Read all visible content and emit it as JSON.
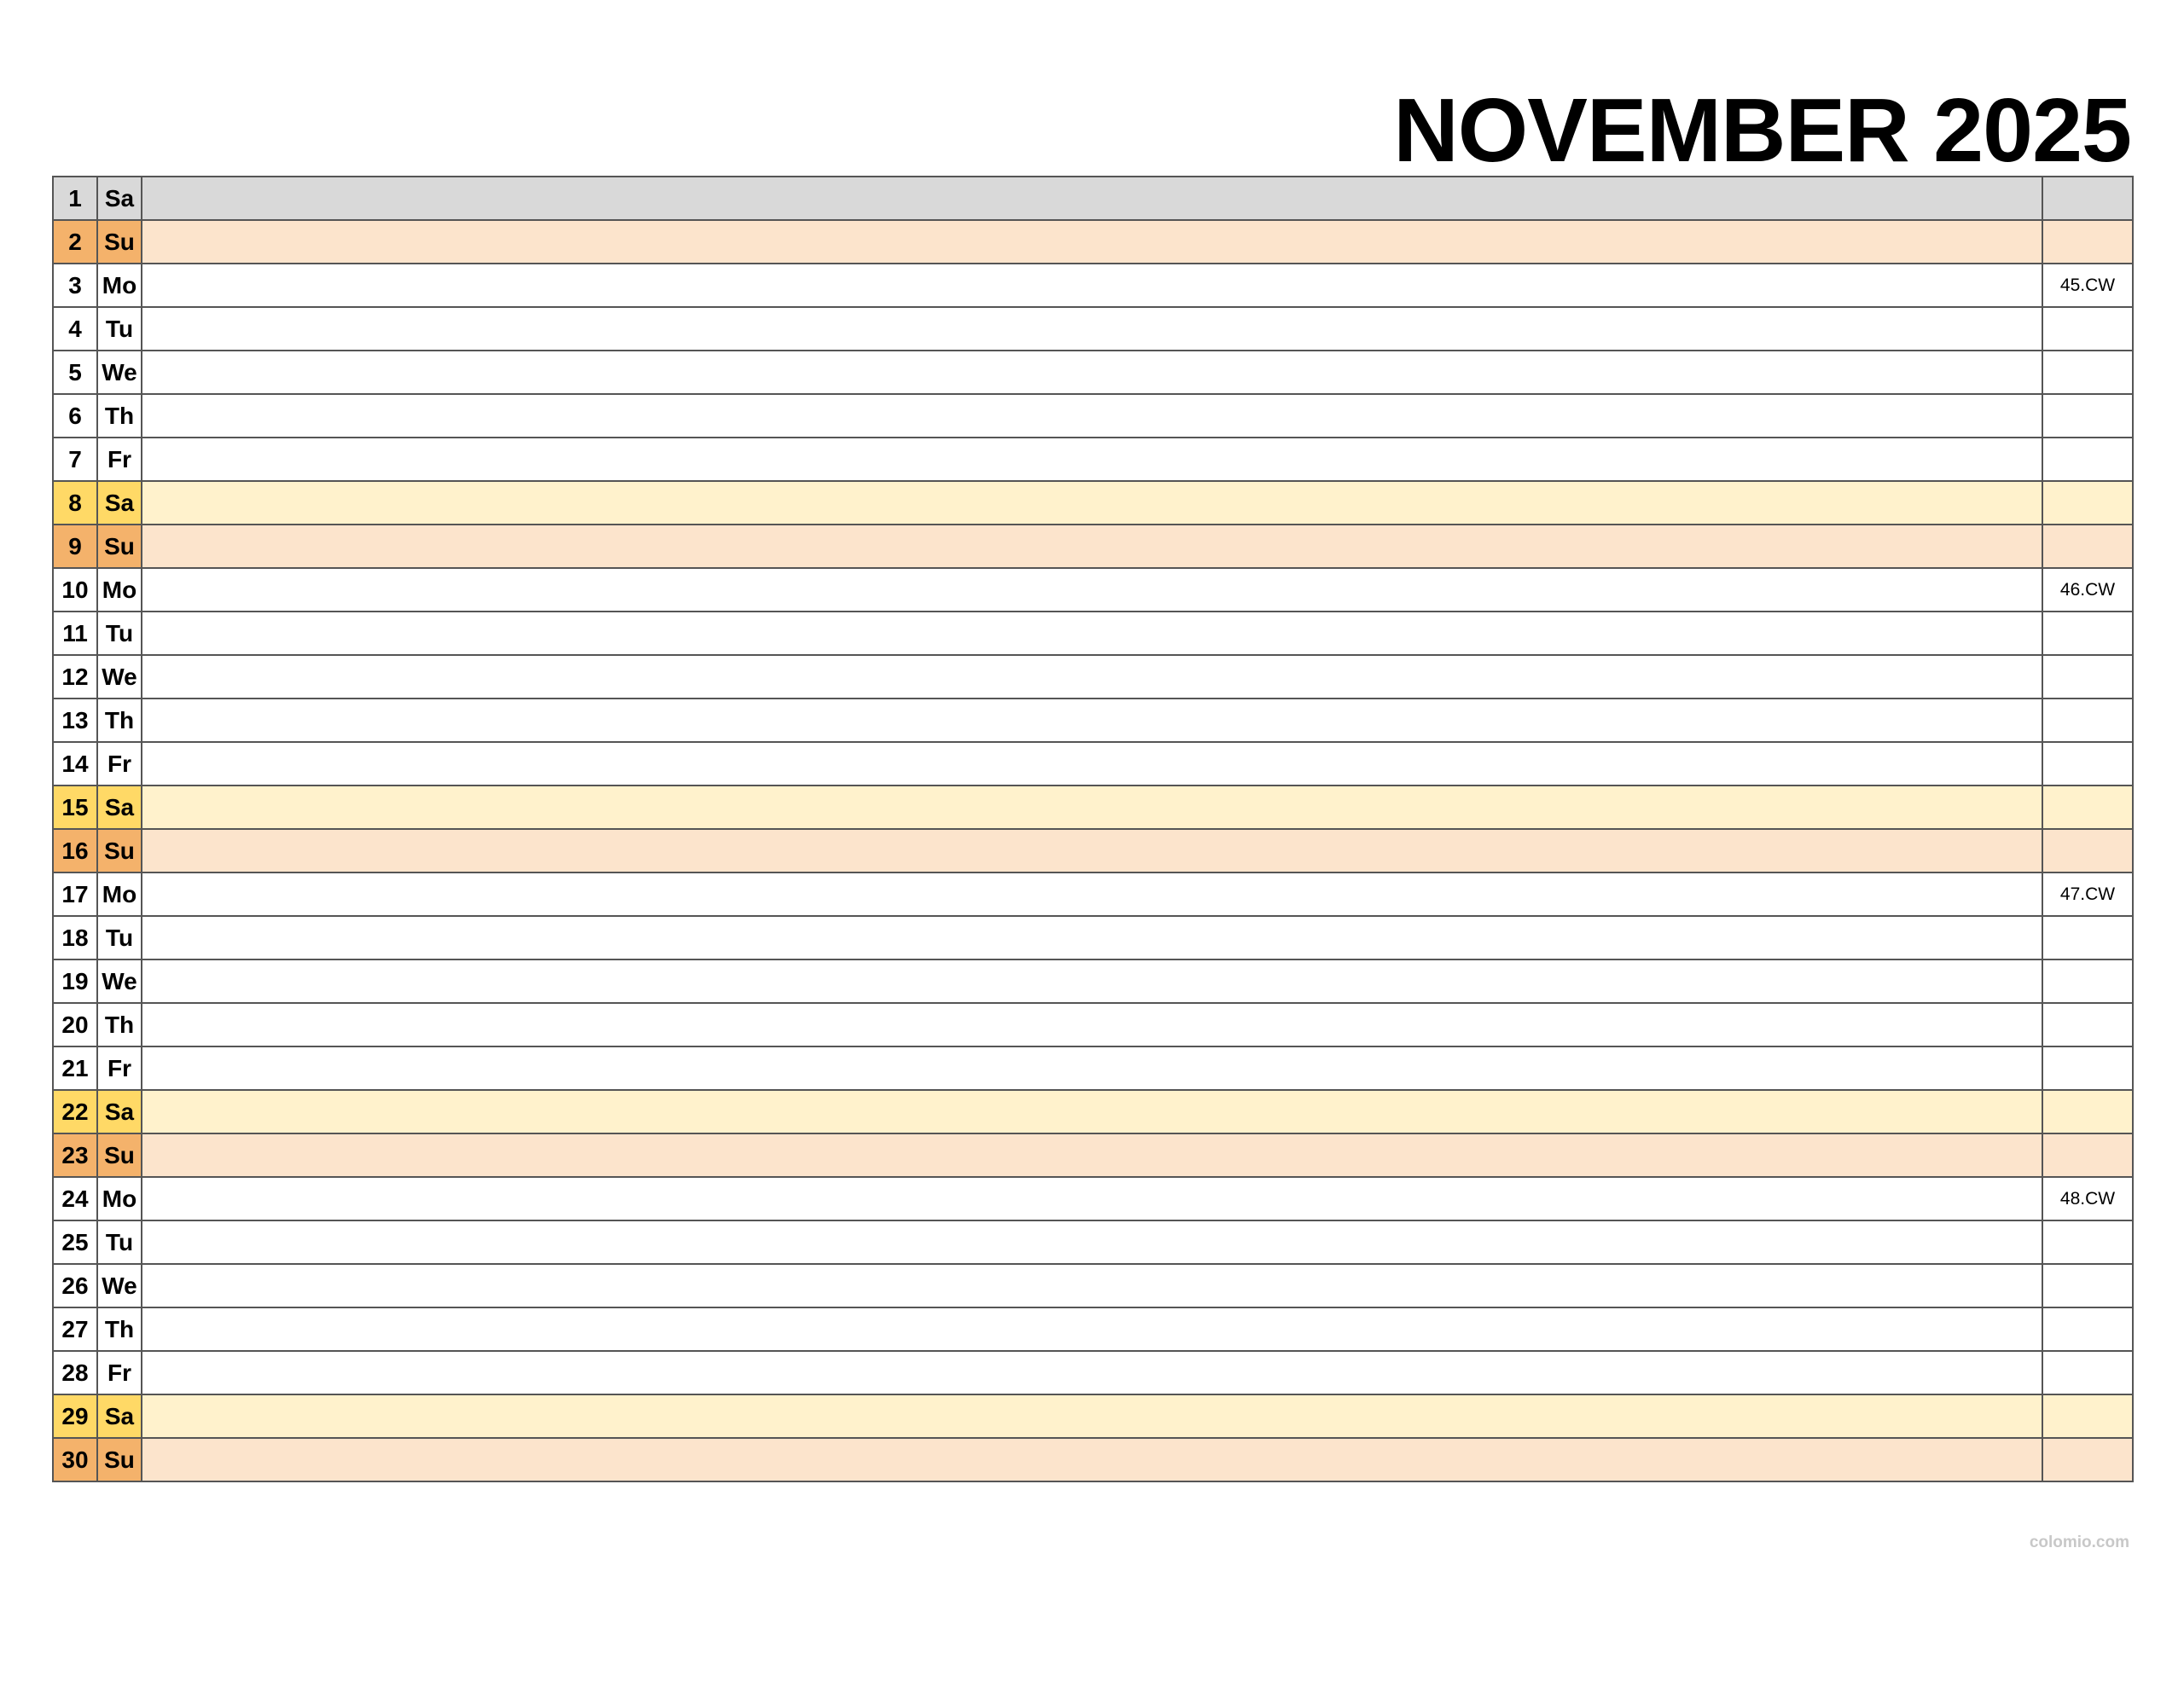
{
  "title": "NOVEMBER 2025",
  "watermark": "colomio.com",
  "colors": {
    "first_row": "#d9d9d9",
    "saturday_label": "#ffd966",
    "saturday_row": "#fff2cc",
    "sunday_label": "#f4b26b",
    "sunday_row": "#fce4cc",
    "grid": "#555555"
  },
  "days": [
    {
      "day": "1",
      "wd": "Sa",
      "cw": ""
    },
    {
      "day": "2",
      "wd": "Su",
      "cw": ""
    },
    {
      "day": "3",
      "wd": "Mo",
      "cw": "45.CW"
    },
    {
      "day": "4",
      "wd": "Tu",
      "cw": ""
    },
    {
      "day": "5",
      "wd": "We",
      "cw": ""
    },
    {
      "day": "6",
      "wd": "Th",
      "cw": ""
    },
    {
      "day": "7",
      "wd": "Fr",
      "cw": ""
    },
    {
      "day": "8",
      "wd": "Sa",
      "cw": ""
    },
    {
      "day": "9",
      "wd": "Su",
      "cw": ""
    },
    {
      "day": "10",
      "wd": "Mo",
      "cw": "46.CW"
    },
    {
      "day": "11",
      "wd": "Tu",
      "cw": ""
    },
    {
      "day": "12",
      "wd": "We",
      "cw": ""
    },
    {
      "day": "13",
      "wd": "Th",
      "cw": ""
    },
    {
      "day": "14",
      "wd": "Fr",
      "cw": ""
    },
    {
      "day": "15",
      "wd": "Sa",
      "cw": ""
    },
    {
      "day": "16",
      "wd": "Su",
      "cw": ""
    },
    {
      "day": "17",
      "wd": "Mo",
      "cw": "47.CW"
    },
    {
      "day": "18",
      "wd": "Tu",
      "cw": ""
    },
    {
      "day": "19",
      "wd": "We",
      "cw": ""
    },
    {
      "day": "20",
      "wd": "Th",
      "cw": ""
    },
    {
      "day": "21",
      "wd": "Fr",
      "cw": ""
    },
    {
      "day": "22",
      "wd": "Sa",
      "cw": ""
    },
    {
      "day": "23",
      "wd": "Su",
      "cw": ""
    },
    {
      "day": "24",
      "wd": "Mo",
      "cw": "48.CW"
    },
    {
      "day": "25",
      "wd": "Tu",
      "cw": ""
    },
    {
      "day": "26",
      "wd": "We",
      "cw": ""
    },
    {
      "day": "27",
      "wd": "Th",
      "cw": ""
    },
    {
      "day": "28",
      "wd": "Fr",
      "cw": ""
    },
    {
      "day": "29",
      "wd": "Sa",
      "cw": ""
    },
    {
      "day": "30",
      "wd": "Su",
      "cw": ""
    }
  ]
}
